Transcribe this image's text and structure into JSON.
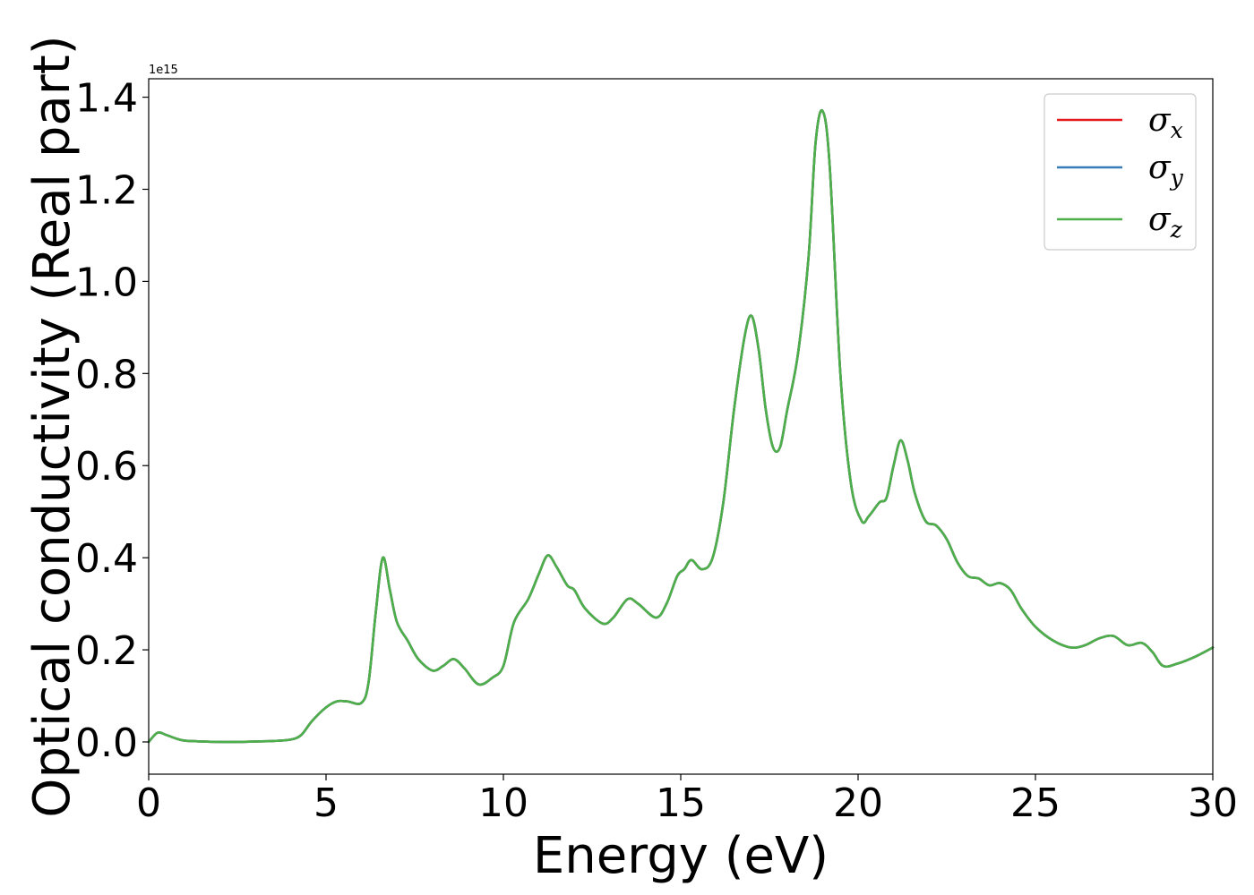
{
  "chart_data": {
    "type": "line",
    "xlabel": "Energy (eV)",
    "ylabel": "Optical conductivity (Real part)",
    "y_offset_text": "1e15",
    "xlim": [
      0,
      30
    ],
    "ylim": [
      -0.07,
      1.44
    ],
    "y_scale": 1000000000000000.0,
    "xticks": [
      0,
      5,
      10,
      15,
      20,
      25,
      30
    ],
    "xtick_labels": [
      "0",
      "5",
      "10",
      "15",
      "20",
      "25",
      "30"
    ],
    "yticks": [
      0.0,
      0.2,
      0.4,
      0.6,
      0.8,
      1.0,
      1.2,
      1.4
    ],
    "ytick_labels": [
      "0.0",
      "0.2",
      "0.4",
      "0.6",
      "0.8",
      "1.0",
      "1.2",
      "1.4"
    ],
    "grid": false,
    "legend_position": "top-right",
    "series": [
      {
        "name": "σx",
        "base": "σ",
        "sub": "x",
        "color": "#e41a1c",
        "values_ref": "shared"
      },
      {
        "name": "σy",
        "base": "σ",
        "sub": "y",
        "color": "#377eb8",
        "values_ref": "shared"
      },
      {
        "name": "σz",
        "base": "σ",
        "sub": "z",
        "color": "#4daf4a",
        "values_ref": "shared"
      }
    ],
    "x": [
      0,
      0.25,
      0.5,
      0.75,
      1.0,
      1.5,
      2.0,
      2.5,
      3.0,
      3.5,
      4.0,
      4.3,
      4.6,
      5.0,
      5.3,
      5.6,
      6.0,
      6.2,
      6.4,
      6.6,
      6.8,
      7.0,
      7.3,
      7.6,
      8.0,
      8.3,
      8.6,
      8.9,
      9.3,
      9.7,
      10.0,
      10.3,
      10.7,
      11.0,
      11.25,
      11.5,
      11.8,
      12.0,
      12.3,
      12.8,
      13.1,
      13.5,
      13.8,
      14.3,
      14.6,
      14.9,
      15.1,
      15.3,
      15.6,
      15.9,
      16.2,
      16.5,
      16.8,
      17.0,
      17.2,
      17.4,
      17.6,
      17.8,
      18.0,
      18.3,
      18.6,
      18.8,
      19.0,
      19.2,
      19.5,
      19.8,
      20.1,
      20.3,
      20.6,
      20.8,
      21.0,
      21.2,
      21.4,
      21.6,
      21.9,
      22.2,
      22.5,
      22.8,
      23.1,
      23.4,
      23.7,
      24.0,
      24.3,
      24.6,
      25.0,
      25.5,
      26.0,
      26.4,
      26.8,
      27.2,
      27.6,
      28.0,
      28.3,
      28.6,
      29.0,
      29.5,
      30.0
    ],
    "values": [
      0.0,
      0.02,
      0.015,
      0.008,
      0.003,
      0.001,
      0.0,
      0.0,
      0.001,
      0.002,
      0.005,
      0.015,
      0.045,
      0.075,
      0.088,
      0.088,
      0.085,
      0.13,
      0.28,
      0.4,
      0.33,
      0.26,
      0.22,
      0.18,
      0.155,
      0.165,
      0.18,
      0.16,
      0.125,
      0.14,
      0.165,
      0.26,
      0.31,
      0.365,
      0.405,
      0.38,
      0.34,
      0.33,
      0.29,
      0.257,
      0.27,
      0.31,
      0.3,
      0.27,
      0.3,
      0.36,
      0.375,
      0.395,
      0.375,
      0.4,
      0.52,
      0.72,
      0.88,
      0.925,
      0.85,
      0.72,
      0.64,
      0.64,
      0.72,
      0.84,
      1.05,
      1.3,
      1.37,
      1.25,
      0.8,
      0.56,
      0.48,
      0.49,
      0.52,
      0.53,
      0.6,
      0.655,
      0.61,
      0.54,
      0.48,
      0.47,
      0.44,
      0.39,
      0.36,
      0.355,
      0.34,
      0.345,
      0.33,
      0.29,
      0.25,
      0.22,
      0.205,
      0.21,
      0.225,
      0.23,
      0.21,
      0.215,
      0.195,
      0.165,
      0.17,
      0.185,
      0.205
    ]
  }
}
